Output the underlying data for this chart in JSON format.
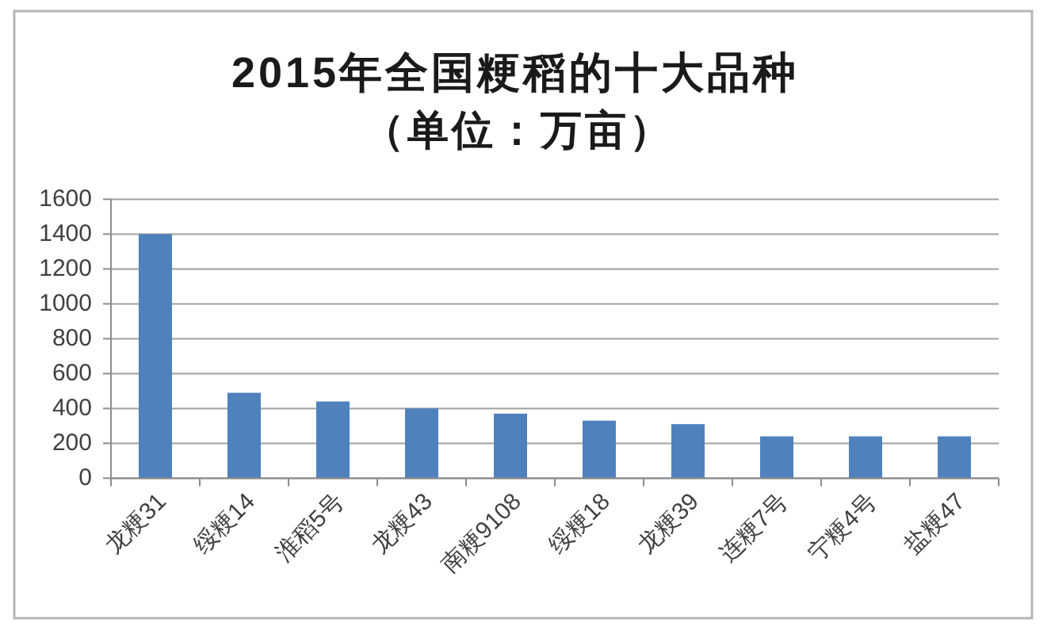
{
  "chart_data": {
    "type": "bar",
    "title": "2015年全国粳稻的十大品种",
    "subtitle": "（单位：万亩）",
    "categories": [
      "龙粳31",
      "绥粳14",
      "淮稻5号",
      "龙粳43",
      "南粳9108",
      "绥粳18",
      "龙粳39",
      "连粳7号",
      "宁粳4号",
      "盐粳47"
    ],
    "values": [
      1400,
      490,
      440,
      400,
      370,
      330,
      310,
      240,
      240,
      240
    ],
    "color": "#4f81bd",
    "ylim": [
      0,
      1600
    ],
    "yticks": [
      0,
      200,
      400,
      600,
      800,
      1000,
      1200,
      1400,
      1600
    ],
    "grid": "y"
  }
}
